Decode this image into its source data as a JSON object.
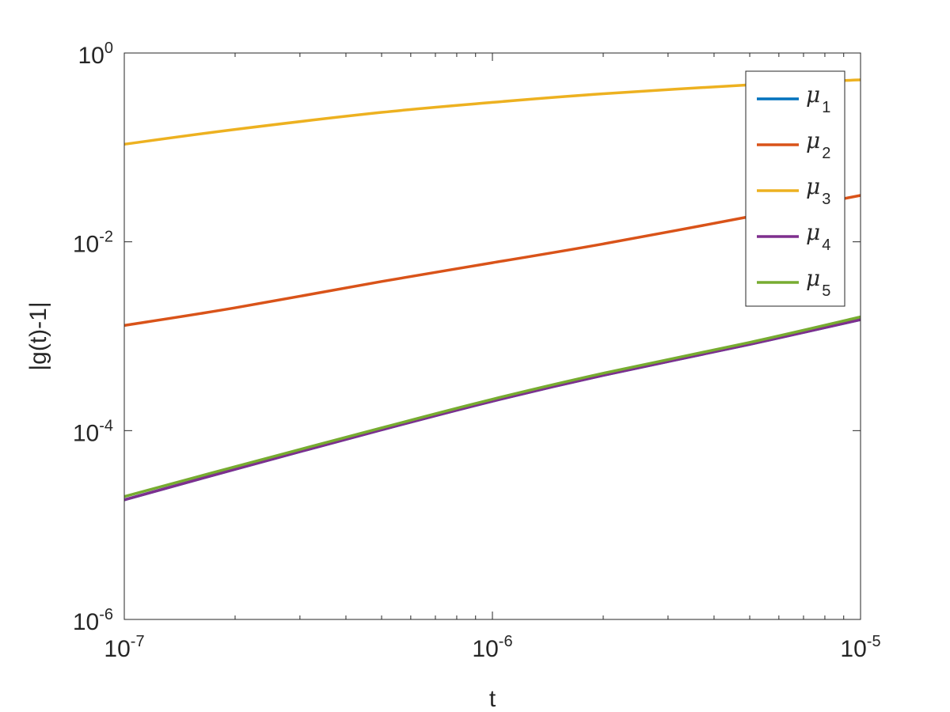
{
  "chart_data": {
    "type": "line",
    "xlabel": "t",
    "ylabel": "|g(t)-1|",
    "xscale": "log",
    "yscale": "log",
    "xlim": [
      1e-07,
      1e-05
    ],
    "ylim": [
      1e-06,
      1
    ],
    "x_ticks": [
      {
        "value": 1e-07,
        "base": "10",
        "exp": "-7"
      },
      {
        "value": 1e-06,
        "base": "10",
        "exp": "-6"
      },
      {
        "value": 1e-05,
        "base": "10",
        "exp": "-5"
      }
    ],
    "y_ticks": [
      {
        "value": 1e-06,
        "base": "10",
        "exp": "-6"
      },
      {
        "value": 0.0001,
        "base": "10",
        "exp": "-4"
      },
      {
        "value": 0.01,
        "base": "10",
        "exp": "-2"
      },
      {
        "value": 1,
        "base": "10",
        "exp": "0"
      }
    ],
    "grid": false,
    "legend_position": "top-right",
    "x": [
      1e-07,
      2e-07,
      5e-07,
      1e-06,
      2e-06,
      5e-06,
      1e-05
    ],
    "series": [
      {
        "name": "μ",
        "subscript": "1",
        "color": "#0072BD",
        "values": [
          1.85e-05,
          3.9e-05,
          0.000102,
          0.000205,
          0.000385,
          0.00082,
          0.0015
        ]
      },
      {
        "name": "μ",
        "subscript": "2",
        "color": "#D95319",
        "values": [
          0.0013,
          0.002,
          0.0038,
          0.006,
          0.0095,
          0.0185,
          0.031
        ]
      },
      {
        "name": "μ",
        "subscript": "3",
        "color": "#EDB120",
        "values": [
          0.108,
          0.155,
          0.235,
          0.3,
          0.37,
          0.46,
          0.52
        ]
      },
      {
        "name": "μ",
        "subscript": "4",
        "color": "#7E2F8E",
        "values": [
          1.85e-05,
          3.9e-05,
          0.000102,
          0.000205,
          0.000385,
          0.00082,
          0.0015
        ]
      },
      {
        "name": "μ",
        "subscript": "5",
        "color": "#77AC30",
        "values": [
          2e-05,
          4.15e-05,
          0.000107,
          0.000215,
          0.000405,
          0.00086,
          0.0016
        ]
      }
    ]
  }
}
